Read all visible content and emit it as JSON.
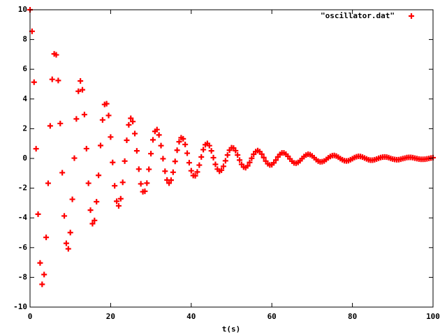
{
  "chart_data": {
    "type": "scatter",
    "xlabel": "t(s)",
    "xlim": [
      0,
      100
    ],
    "xticks": [
      0,
      20,
      40,
      60,
      80,
      100
    ],
    "ylim": [
      -10,
      10
    ],
    "yticks": [
      -10,
      -8,
      -6,
      -4,
      -2,
      0,
      2,
      4,
      6,
      8,
      10
    ],
    "grid": false,
    "legend": "top-right",
    "marker": "+",
    "x": [
      0,
      0.5,
      1,
      1.5,
      2,
      2.5,
      3,
      3.5,
      4,
      4.5,
      5,
      5.5,
      6,
      6.5,
      7,
      7.5,
      8,
      8.5,
      9,
      9.5,
      10,
      10.5,
      11,
      11.5,
      12,
      12.5,
      13,
      13.5,
      14,
      14.5,
      15,
      15.5,
      16,
      16.5,
      17,
      17.5,
      18,
      18.5,
      19,
      19.5,
      20,
      20.5,
      21,
      21.5,
      22,
      22.5,
      23,
      23.5,
      24,
      24.5,
      25,
      25.5,
      26,
      26.5,
      27,
      27.5,
      28,
      28.5,
      29,
      29.5,
      30,
      30.5,
      31,
      31.5,
      32,
      32.5,
      33,
      33.5,
      34,
      34.5,
      35,
      35.5,
      36,
      36.5,
      37,
      37.5,
      38,
      38.5,
      39,
      39.5,
      40,
      40.5,
      41,
      41.5,
      42,
      42.5,
      43,
      43.5,
      44,
      44.5,
      45,
      45.5,
      46,
      46.5,
      47,
      47.5,
      48,
      48.5,
      49,
      49.5,
      50,
      50.5,
      51,
      51.5,
      52,
      52.5,
      53,
      53.5,
      54,
      54.5,
      55,
      55.5,
      56,
      56.5,
      57,
      57.5,
      58,
      58.5,
      59,
      59.5,
      60,
      60.5,
      61,
      61.5,
      62,
      62.5,
      63,
      63.5,
      64,
      64.5,
      65,
      65.5,
      66,
      66.5,
      67,
      67.5,
      68,
      68.5,
      69,
      69.5,
      70,
      70.5,
      71,
      71.5,
      72,
      72.5,
      73,
      73.5,
      74,
      74.5,
      75,
      75.5,
      76,
      76.5,
      77,
      77.5,
      78,
      78.5,
      79,
      79.5,
      80,
      80.5,
      81,
      81.5,
      82,
      82.5,
      83,
      83.5,
      84,
      84.5,
      85,
      85.5,
      86,
      86.5,
      87,
      87.5,
      88,
      88.5,
      89,
      89.5,
      90,
      90.5,
      91,
      91.5,
      92,
      92.5,
      93,
      93.5,
      94,
      94.5,
      95,
      95.5,
      96,
      96.5,
      97,
      97.5,
      98,
      98.5,
      99,
      99.5,
      100
    ],
    "series": [
      {
        "name": "\"oscillator.dat\"",
        "color": "#ff0000",
        "values": [
          10.0,
          8.55,
          5.13,
          0.65,
          -3.75,
          -7.03,
          -8.47,
          -7.81,
          -5.31,
          -1.67,
          2.19,
          5.32,
          7.03,
          6.97,
          5.24,
          2.35,
          -0.96,
          -3.87,
          -5.71,
          -6.08,
          -4.99,
          -2.75,
          0.02,
          2.66,
          4.52,
          5.21,
          4.62,
          2.95,
          0.66,
          -1.67,
          -3.48,
          -4.39,
          -4.17,
          -2.91,
          -1.14,
          0.87,
          2.59,
          3.63,
          3.68,
          2.89,
          1.44,
          -0.27,
          -1.84,
          -2.88,
          -3.19,
          -2.71,
          -1.61,
          -0.18,
          1.22,
          2.26,
          2.7,
          2.48,
          1.67,
          0.51,
          -0.72,
          -1.71,
          -2.24,
          -2.21,
          -1.66,
          -0.73,
          0.32,
          1.25,
          1.82,
          1.94,
          1.58,
          0.86,
          -0.02,
          -0.86,
          -1.45,
          -1.66,
          -1.46,
          -0.93,
          -0.2,
          0.55,
          1.12,
          1.39,
          1.32,
          0.94,
          0.35,
          -0.29,
          -0.83,
          -1.15,
          -1.17,
          -0.91,
          -0.45,
          0.1,
          0.59,
          0.92,
          1.01,
          0.86,
          0.51,
          0.05,
          -0.4,
          -0.72,
          -0.86,
          -0.79,
          -0.53,
          -0.16,
          0.23,
          0.55,
          0.72,
          0.7,
          0.52,
          0.23,
          -0.11,
          -0.4,
          -0.58,
          -0.62,
          -0.5,
          -0.27,
          0.01,
          0.28,
          0.46,
          0.53,
          0.46,
          0.29,
          0.06,
          -0.18,
          -0.36,
          -0.44,
          -0.42,
          -0.3,
          -0.11,
          0.1,
          0.27,
          0.37,
          0.37,
          0.29,
          0.14,
          -0.03,
          -0.19,
          -0.3,
          -0.32,
          -0.27,
          -0.16,
          -0.01,
          0.13,
          0.23,
          0.28,
          0.25,
          0.17,
          0.05,
          -0.08,
          -0.18,
          -0.23,
          -0.22,
          -0.17,
          -0.07,
          0.04,
          0.13,
          0.19,
          0.2,
          0.16,
          0.08,
          -0.01,
          -0.09,
          -0.15,
          -0.17,
          -0.15,
          -0.09,
          -0.02,
          0.06,
          0.11,
          0.14,
          0.13,
          0.09,
          0.03,
          -0.03,
          -0.09,
          -0.12,
          -0.12,
          -0.09,
          -0.04,
          0.01,
          0.06,
          0.09,
          0.1,
          0.09,
          0.05,
          0.0,
          -0.04,
          -0.07,
          -0.09,
          -0.08,
          -0.05,
          -0.01,
          0.02,
          0.06,
          0.07,
          0.07,
          0.05,
          0.02,
          -0.01,
          -0.04,
          -0.06,
          -0.06,
          -0.05,
          -0.03,
          0.0,
          0.03,
          0.05
        ]
      }
    ]
  }
}
